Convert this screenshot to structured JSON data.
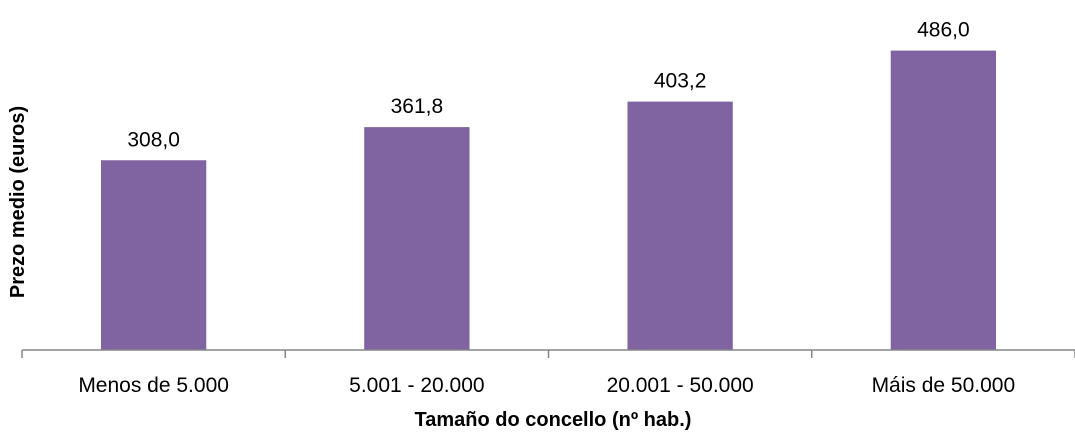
{
  "chart_data": {
    "type": "bar",
    "title": "",
    "xlabel": "Tamaño do concello (nº hab.)",
    "ylabel": "Prezo medio (euros)",
    "categories": [
      "Menos de 5.000",
      "5.001 - 20.000",
      "20.001 - 50.000",
      "Máis de 50.000"
    ],
    "values": [
      308.0,
      361.8,
      403.2,
      486.0
    ],
    "value_labels": [
      "308,0",
      "361,8",
      "403,2",
      "486,0"
    ],
    "ylim": [
      0,
      560
    ],
    "grid": false,
    "legend": "none",
    "bar_color": "#8064a2",
    "axis_color": "#868686"
  }
}
